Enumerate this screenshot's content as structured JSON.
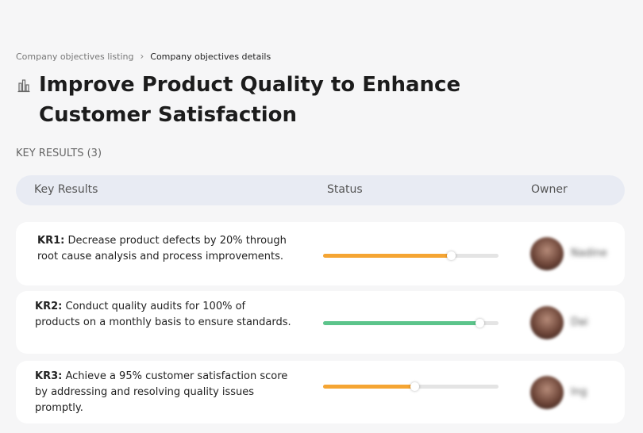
{
  "breadcrumb": {
    "items": [
      "Company objectives listing",
      "Company objectives details"
    ]
  },
  "title": "Improve Product Quality to Enhance Customer Satisfaction",
  "section_label": "KEY RESULTS (3)",
  "table": {
    "columns": [
      "Key Results",
      "Status",
      "Owner"
    ],
    "progress_scale": [
      0,
      100
    ],
    "rows": [
      {
        "label": "KR1:",
        "text": "Decrease product defects by 20% through root cause analysis and process improvements.",
        "progress": 73,
        "color": "#f5a533",
        "owner": "Nadine"
      },
      {
        "label": "KR2:",
        "text": "Conduct quality audits for 100% of products on a monthly basis to ensure standards.",
        "progress": 89,
        "color": "#5cc48b",
        "owner": "Dai"
      },
      {
        "label": "KR3:",
        "text": "Achieve a 95% customer satisfaction score by addressing and resolving quality issues promptly.",
        "progress": 52,
        "color": "#f5a533",
        "owner": "Ing"
      }
    ]
  }
}
